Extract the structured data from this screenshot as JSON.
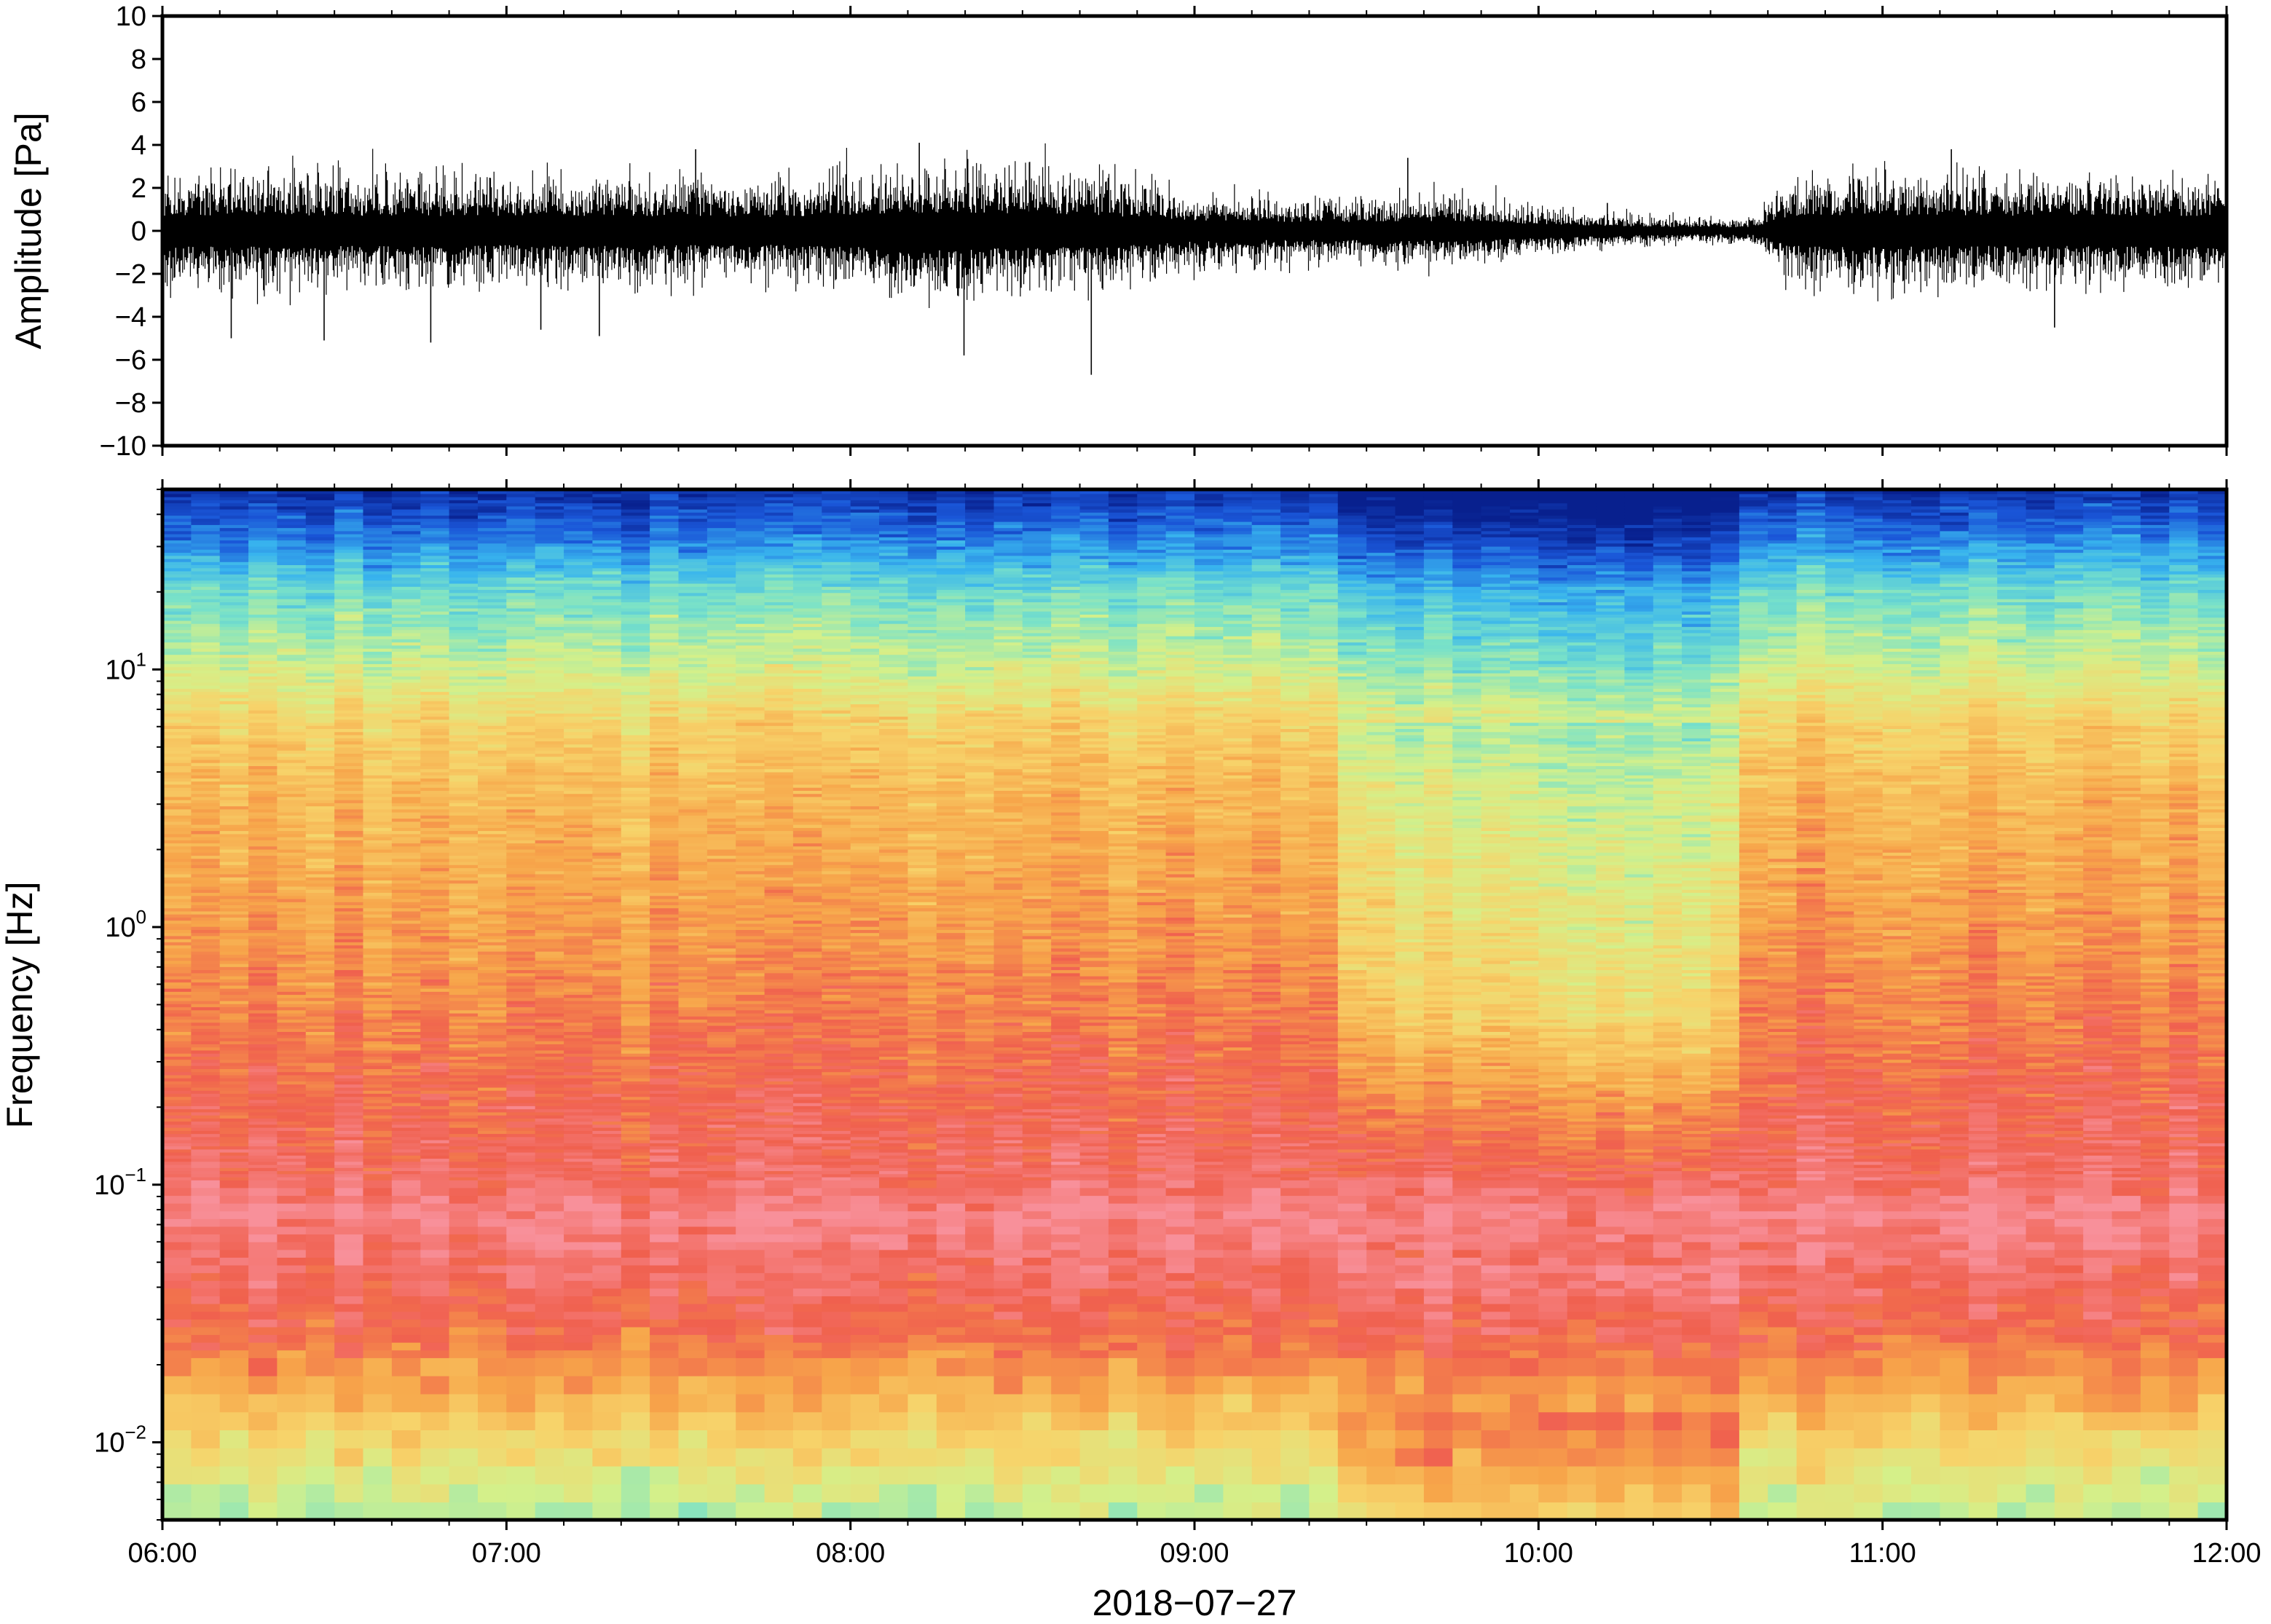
{
  "chart_data": [
    {
      "type": "line",
      "panel": "waveform",
      "ylabel": "Amplitude [Pa]",
      "ylim": [
        -10,
        10
      ],
      "yticks": [
        -10,
        -8,
        -6,
        -4,
        -2,
        0,
        2,
        4,
        6,
        8,
        10
      ],
      "ytick_labels": [
        "−10",
        "−8",
        "−6",
        "−4",
        "−2",
        "0",
        "2",
        "4",
        "6",
        "8",
        "10"
      ],
      "x_unit": "hours",
      "xlim": [
        6,
        12
      ],
      "series": [
        {
          "color": "#000000",
          "envelope_x": [
            6.0,
            6.25,
            6.5,
            6.75,
            7.0,
            7.25,
            7.5,
            7.75,
            8.0,
            8.25,
            8.5,
            8.75,
            9.0,
            9.25,
            9.5,
            9.75,
            10.0,
            10.25,
            10.5,
            10.62,
            10.75,
            11.0,
            11.25,
            11.5,
            11.75,
            12.0
          ],
          "envelope_amp": [
            2.0,
            2.1,
            2.0,
            2.0,
            1.9,
            2.0,
            1.9,
            1.8,
            2.1,
            2.4,
            2.3,
            2.0,
            1.4,
            1.2,
            1.2,
            1.3,
            0.9,
            0.6,
            0.45,
            0.45,
            2.0,
            2.1,
            2.0,
            2.0,
            2.0,
            1.9
          ],
          "peaks": [
            {
              "x": 6.2,
              "y": -5.0
            },
            {
              "x": 6.47,
              "y": -5.1
            },
            {
              "x": 6.78,
              "y": -5.2
            },
            {
              "x": 7.1,
              "y": -4.6
            },
            {
              "x": 7.27,
              "y": -4.9
            },
            {
              "x": 7.55,
              "y": 3.8
            },
            {
              "x": 8.2,
              "y": 4.1
            },
            {
              "x": 8.33,
              "y": -5.8
            },
            {
              "x": 8.52,
              "y": 3.2
            },
            {
              "x": 8.7,
              "y": -6.7
            },
            {
              "x": 9.62,
              "y": 3.4
            },
            {
              "x": 10.2,
              "y": 1.3
            },
            {
              "x": 11.2,
              "y": 3.8
            },
            {
              "x": 11.5,
              "y": -4.5
            }
          ]
        }
      ]
    },
    {
      "type": "heatmap",
      "panel": "spectrogram",
      "ylabel": "Frequency [Hz]",
      "yscale": "log",
      "ylim": [
        0.005,
        50
      ],
      "yticks": [
        {
          "value": 0.01,
          "base": "10",
          "exp": "−2"
        },
        {
          "value": 0.1,
          "base": "10",
          "exp": "−1"
        },
        {
          "value": 1,
          "base": "10",
          "exp": "0"
        },
        {
          "value": 10,
          "base": "10",
          "exp": "1"
        }
      ],
      "xlim": [
        6,
        12
      ],
      "xticks": [
        6,
        7,
        8,
        9,
        10,
        11,
        12
      ],
      "xtick_labels": [
        "06:00",
        "07:00",
        "08:00",
        "09:00",
        "10:00",
        "11:00",
        "12:00"
      ],
      "xlabel": "2018−07−27",
      "colormap": [
        "#08208e",
        "#1a56d8",
        "#38b4ee",
        "#7ae2c8",
        "#d4f08a",
        "#f7d36a",
        "#f7a54a",
        "#f0604e",
        "#f8909a"
      ],
      "profile_log10_freq": [
        -2.3,
        -2.0,
        -1.6,
        -1.3,
        -1.1,
        -1.0,
        -0.7,
        -0.4,
        0.0,
        0.5,
        0.8,
        1.0,
        1.3,
        1.5,
        1.7
      ],
      "profile_levels": [
        3.6,
        4.9,
        6.7,
        7.4,
        7.8,
        7.3,
        7.0,
        6.6,
        6.1,
        5.6,
        5.0,
        4.0,
        2.9,
        1.5,
        0.3
      ],
      "quiet_intervals": [
        {
          "x": [
            9.45,
            9.62
          ],
          "strength": 0.7
        },
        {
          "x": [
            9.62,
            10.02
          ],
          "strength": 0.9
        },
        {
          "x": [
            10.02,
            10.62
          ],
          "strength": 1.0
        }
      ]
    }
  ]
}
